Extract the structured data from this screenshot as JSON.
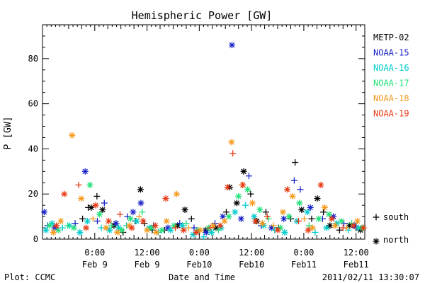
{
  "chart_data": {
    "type": "scatter",
    "title": "Hemispheric Power [GW]",
    "ylabel": "P [GW]",
    "xlabel": "Date and Time",
    "xlim": [
      -4,
      70
    ],
    "ylim": [
      0,
      95
    ],
    "y_ticks": [
      0,
      20,
      40,
      60,
      80
    ],
    "x_ticks": [
      {
        "x": 8,
        "time": "0:00",
        "date": "Feb 9"
      },
      {
        "x": 20,
        "time": "12:00",
        "date": "Feb 9"
      },
      {
        "x": 32,
        "time": "0:00",
        "date": "Feb10"
      },
      {
        "x": 44,
        "time": "12:00",
        "date": "Feb10"
      },
      {
        "x": 56,
        "time": "0:00",
        "date": "Feb11"
      },
      {
        "x": 68,
        "time": "12:00",
        "date": "Feb11"
      }
    ],
    "marker_legend": [
      {
        "symbol": "+",
        "label": "south"
      },
      {
        "symbol": "*",
        "label": "north"
      }
    ],
    "series": [
      {
        "name": "METP-02",
        "color": "#000000",
        "points": [
          [
            5.2,
            9,
            "s"
          ],
          [
            6.5,
            14,
            "s"
          ],
          [
            7.2,
            14,
            "n"
          ],
          [
            8.5,
            19,
            "s"
          ],
          [
            9.8,
            13,
            "n"
          ],
          [
            12.4,
            6,
            "n"
          ],
          [
            14.5,
            3,
            "s"
          ],
          [
            17.3,
            8,
            "s"
          ],
          [
            18.5,
            22,
            "n"
          ],
          [
            19.4,
            7,
            "s"
          ],
          [
            21.2,
            4,
            "s"
          ],
          [
            24.0,
            4,
            "s"
          ],
          [
            27.0,
            6,
            "n"
          ],
          [
            28.7,
            13,
            "n"
          ],
          [
            30.2,
            9,
            "s"
          ],
          [
            33.5,
            4,
            "n"
          ],
          [
            35.8,
            5,
            "n"
          ],
          [
            38.2,
            12,
            "s"
          ],
          [
            39.0,
            23,
            "n"
          ],
          [
            40.6,
            16,
            "n"
          ],
          [
            42.2,
            30,
            "n"
          ],
          [
            43.8,
            20,
            "s"
          ],
          [
            45.2,
            8,
            "n"
          ],
          [
            47.3,
            12,
            "s"
          ],
          [
            50.2,
            5,
            "s"
          ],
          [
            53.0,
            9,
            "s"
          ],
          [
            54.0,
            34,
            "s"
          ],
          [
            55.5,
            13,
            "n"
          ],
          [
            57.8,
            9,
            "s"
          ],
          [
            59.1,
            18,
            "n"
          ],
          [
            60.5,
            12,
            "s"
          ],
          [
            62.0,
            6,
            "n"
          ],
          [
            64.2,
            4,
            "s"
          ],
          [
            66.5,
            6,
            "n"
          ],
          [
            68.0,
            5,
            "s"
          ],
          [
            69.0,
            4,
            "n"
          ]
        ]
      },
      {
        "name": "NOAA-15",
        "color": "#1a22c8",
        "points": [
          [
            -3.6,
            12,
            "n"
          ],
          [
            -2.8,
            6,
            "s"
          ],
          [
            -1.2,
            5,
            "n"
          ],
          [
            3.5,
            7,
            "s"
          ],
          [
            5.8,
            30,
            "n"
          ],
          [
            8.6,
            8,
            "s"
          ],
          [
            10.2,
            16,
            "s"
          ],
          [
            12.9,
            7,
            "n"
          ],
          [
            15.5,
            10,
            "s"
          ],
          [
            16.8,
            12,
            "n"
          ],
          [
            18.6,
            16,
            "n"
          ],
          [
            21.5,
            6,
            "s"
          ],
          [
            24.8,
            5,
            "n"
          ],
          [
            27.5,
            7,
            "s"
          ],
          [
            30.8,
            5,
            "s"
          ],
          [
            33.6,
            3,
            "n"
          ],
          [
            35.6,
            7,
            "s"
          ],
          [
            37.4,
            10,
            "n"
          ],
          [
            39.5,
            86,
            "n"
          ],
          [
            41.6,
            9,
            "n"
          ],
          [
            43.4,
            28,
            "s"
          ],
          [
            46.2,
            6,
            "s"
          ],
          [
            48.6,
            5,
            "n"
          ],
          [
            51.4,
            9,
            "n"
          ],
          [
            53.8,
            26,
            "s"
          ],
          [
            55.2,
            22,
            "s"
          ],
          [
            57.5,
            14,
            "n"
          ],
          [
            60.3,
            9,
            "s"
          ],
          [
            62.8,
            10,
            "n"
          ],
          [
            65.2,
            7,
            "s"
          ],
          [
            67.6,
            6,
            "n"
          ]
        ]
      },
      {
        "name": "NOAA-16",
        "color": "#00cccc",
        "points": [
          [
            -3.2,
            4,
            "n"
          ],
          [
            -1.8,
            7,
            "n"
          ],
          [
            0.6,
            5,
            "s"
          ],
          [
            2.2,
            6,
            "n"
          ],
          [
            4.6,
            3,
            "n"
          ],
          [
            6.3,
            8,
            "n"
          ],
          [
            9.5,
            5,
            "s"
          ],
          [
            11.4,
            4,
            "n"
          ],
          [
            13.5,
            5,
            "n"
          ],
          [
            15.3,
            6,
            "s"
          ],
          [
            17.6,
            8,
            "n"
          ],
          [
            20.5,
            5,
            "n"
          ],
          [
            22.6,
            3,
            "s"
          ],
          [
            25.4,
            4,
            "n"
          ],
          [
            28.1,
            6,
            "n"
          ],
          [
            30.6,
            2,
            "n"
          ],
          [
            33.0,
            1,
            "s"
          ],
          [
            34.8,
            3,
            "n"
          ],
          [
            37.0,
            5,
            "n"
          ],
          [
            40.2,
            12,
            "n"
          ],
          [
            42.6,
            15,
            "s"
          ],
          [
            44.6,
            10,
            "n"
          ],
          [
            46.8,
            6,
            "n"
          ],
          [
            49.3,
            4,
            "s"
          ],
          [
            51.6,
            3,
            "n"
          ],
          [
            54.4,
            8,
            "n"
          ],
          [
            56.8,
            12,
            "n"
          ],
          [
            58.6,
            3,
            "s"
          ],
          [
            61.2,
            5,
            "n"
          ],
          [
            63.6,
            7,
            "n"
          ],
          [
            66.2,
            4,
            "s"
          ],
          [
            68.6,
            5,
            "n"
          ]
        ]
      },
      {
        "name": "NOAA-17",
        "color": "#22e07a",
        "points": [
          [
            -2.4,
            6,
            "n"
          ],
          [
            -0.4,
            4,
            "n"
          ],
          [
            1.8,
            6,
            "s"
          ],
          [
            3.2,
            5,
            "n"
          ],
          [
            6.9,
            24,
            "n"
          ],
          [
            9.1,
            11,
            "n"
          ],
          [
            11.8,
            6,
            "s"
          ],
          [
            14.2,
            4,
            "n"
          ],
          [
            16.2,
            9,
            "n"
          ],
          [
            18.9,
            12,
            "s"
          ],
          [
            21.0,
            5,
            "n"
          ],
          [
            23.4,
            4,
            "n"
          ],
          [
            26.2,
            6,
            "n"
          ],
          [
            29.0,
            7,
            "s"
          ],
          [
            31.7,
            4,
            "n"
          ],
          [
            34.2,
            5,
            "n"
          ],
          [
            36.4,
            4,
            "s"
          ],
          [
            38.8,
            10,
            "n"
          ],
          [
            41.0,
            19,
            "n"
          ],
          [
            43.1,
            22,
            "n"
          ],
          [
            45.9,
            13,
            "n"
          ],
          [
            47.9,
            9,
            "s"
          ],
          [
            50.6,
            5,
            "n"
          ],
          [
            52.6,
            10,
            "n"
          ],
          [
            55.0,
            16,
            "n"
          ],
          [
            57.2,
            6,
            "s"
          ],
          [
            59.4,
            9,
            "n"
          ],
          [
            61.8,
            11,
            "n"
          ],
          [
            64.6,
            8,
            "n"
          ],
          [
            67.0,
            7,
            "s"
          ],
          [
            69.4,
            5,
            "n"
          ]
        ]
      },
      {
        "name": "NOAA-18",
        "color": "#f59a1c",
        "points": [
          [
            -1.5,
            3,
            "n"
          ],
          [
            0.2,
            8,
            "n"
          ],
          [
            2.8,
            46,
            "n"
          ],
          [
            4.9,
            18,
            "n"
          ],
          [
            7.6,
            9,
            "s"
          ],
          [
            10.6,
            5,
            "n"
          ],
          [
            13.2,
            3,
            "n"
          ],
          [
            15.9,
            6,
            "n"
          ],
          [
            18.2,
            10,
            "s"
          ],
          [
            20.0,
            4,
            "n"
          ],
          [
            22.1,
            3,
            "n"
          ],
          [
            24.5,
            8,
            "n"
          ],
          [
            26.8,
            20,
            "n"
          ],
          [
            29.5,
            5,
            "s"
          ],
          [
            32.2,
            4,
            "n"
          ],
          [
            35.2,
            6,
            "n"
          ],
          [
            37.8,
            8,
            "n"
          ],
          [
            39.4,
            43,
            "n"
          ],
          [
            41.8,
            24,
            "s"
          ],
          [
            44.2,
            16,
            "n"
          ],
          [
            46.5,
            7,
            "n"
          ],
          [
            49.0,
            6,
            "s"
          ],
          [
            51.2,
            12,
            "n"
          ],
          [
            53.4,
            19,
            "n"
          ],
          [
            56.1,
            9,
            "s"
          ],
          [
            58.0,
            5,
            "n"
          ],
          [
            60.8,
            14,
            "n"
          ],
          [
            63.2,
            6,
            "n"
          ],
          [
            65.8,
            5,
            "s"
          ],
          [
            68.3,
            8,
            "n"
          ]
        ]
      },
      {
        "name": "NOAA-19",
        "color": "#e83a14",
        "points": [
          [
            -0.8,
            6,
            "n"
          ],
          [
            1.0,
            20,
            "n"
          ],
          [
            4.3,
            24,
            "s"
          ],
          [
            6.0,
            5,
            "n"
          ],
          [
            8.2,
            15,
            "n"
          ],
          [
            11.2,
            8,
            "n"
          ],
          [
            13.8,
            11,
            "s"
          ],
          [
            16.5,
            5,
            "n"
          ],
          [
            19.1,
            8,
            "n"
          ],
          [
            21.9,
            6,
            "n"
          ],
          [
            24.3,
            18,
            "n"
          ],
          [
            26.5,
            5,
            "s"
          ],
          [
            28.4,
            4,
            "n"
          ],
          [
            31.3,
            3,
            "n"
          ],
          [
            34.5,
            5,
            "s"
          ],
          [
            36.8,
            6,
            "n"
          ],
          [
            38.5,
            23,
            "n"
          ],
          [
            39.7,
            38,
            "s"
          ],
          [
            42.0,
            24,
            "n"
          ],
          [
            44.9,
            8,
            "n"
          ],
          [
            47.6,
            10,
            "s"
          ],
          [
            50.0,
            4,
            "n"
          ],
          [
            52.2,
            22,
            "n"
          ],
          [
            54.8,
            8,
            "s"
          ],
          [
            57.0,
            4,
            "n"
          ],
          [
            59.9,
            24,
            "n"
          ],
          [
            62.4,
            9,
            "n"
          ],
          [
            65.0,
            5,
            "s"
          ],
          [
            67.4,
            6,
            "n"
          ],
          [
            69.7,
            5,
            "n"
          ]
        ]
      }
    ]
  },
  "footer": {
    "left": "Plot: CCMC",
    "center": "Date and Time",
    "right": "2011/02/11 13:30:07"
  }
}
